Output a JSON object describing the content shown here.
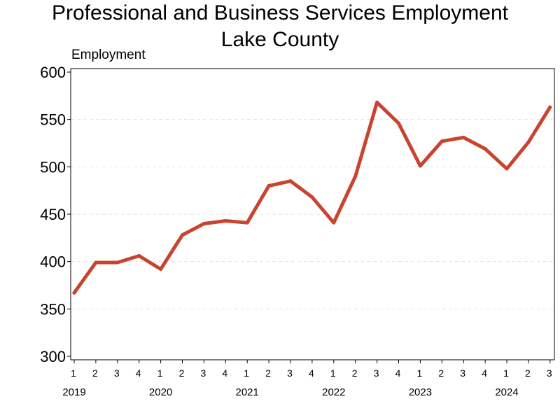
{
  "chart_data": {
    "type": "line",
    "title": "Professional and Business Services Employment",
    "subtitle": "Lake County",
    "ylabel": "Employment",
    "xlabel": "",
    "ylim": [
      300,
      600
    ],
    "yticks": [
      300,
      350,
      400,
      450,
      500,
      550,
      600
    ],
    "grid": true,
    "color": "#c8442f",
    "quarters": [
      "1",
      "2",
      "3",
      "4",
      "1",
      "2",
      "3",
      "4",
      "1",
      "2",
      "3",
      "4",
      "1",
      "2",
      "3",
      "4",
      "1",
      "2",
      "3",
      "4",
      "1",
      "2",
      "3"
    ],
    "years": [
      "2019",
      "2020",
      "2021",
      "2022",
      "2023",
      "2024"
    ],
    "series": [
      {
        "values": [
          367,
          399,
          399,
          406,
          392,
          428,
          440,
          443,
          441,
          480,
          485,
          468,
          441,
          490,
          568,
          546,
          501,
          527,
          531,
          519,
          498,
          526,
          563
        ]
      }
    ]
  }
}
